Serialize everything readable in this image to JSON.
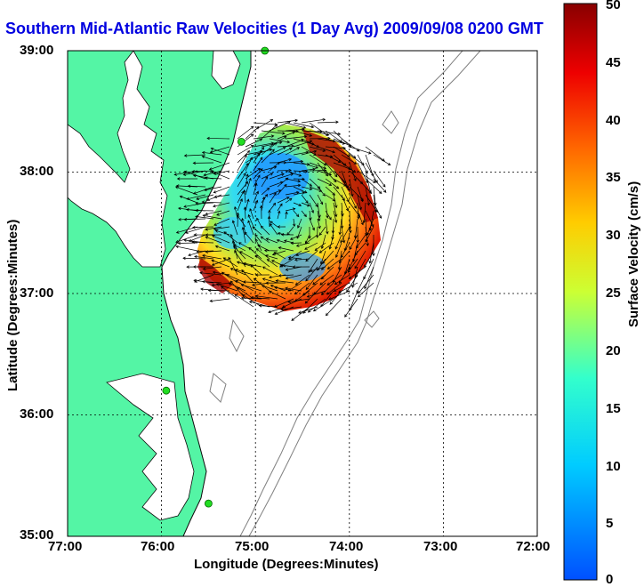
{
  "title": "Southern Mid-Atlantic Raw Velocities (1 Day Avg) 2009/09/08 0200 GMT",
  "axes": {
    "xlabel": "Longitude (Degrees:Minutes)",
    "ylabel": "Latitude (Degrees:Minutes)",
    "xticks": [
      "77:00",
      "76:00",
      "75:00",
      "74:00",
      "73:00",
      "72:00"
    ],
    "yticks": [
      "39:00",
      "38:00",
      "37:00",
      "36:00",
      "35:00"
    ]
  },
  "colorbar": {
    "label": "Surface Velocity (cm/s)",
    "ticks": [
      "50",
      "45",
      "40",
      "35",
      "30",
      "25",
      "20",
      "15",
      "10",
      "5",
      "0"
    ],
    "range": [
      0,
      50
    ]
  },
  "map": {
    "lon_range": [
      -77,
      -72
    ],
    "lat_range": [
      35,
      39
    ],
    "grid": true,
    "land_color": "#54f5a5",
    "water_color": "#ffffff",
    "stations": [
      {
        "lon": -74.9,
        "lat": 39.0
      },
      {
        "lon": -75.15,
        "lat": 38.25
      },
      {
        "lon": -75.95,
        "lat": 36.2
      },
      {
        "lon": -75.5,
        "lat": 35.27
      }
    ]
  }
}
